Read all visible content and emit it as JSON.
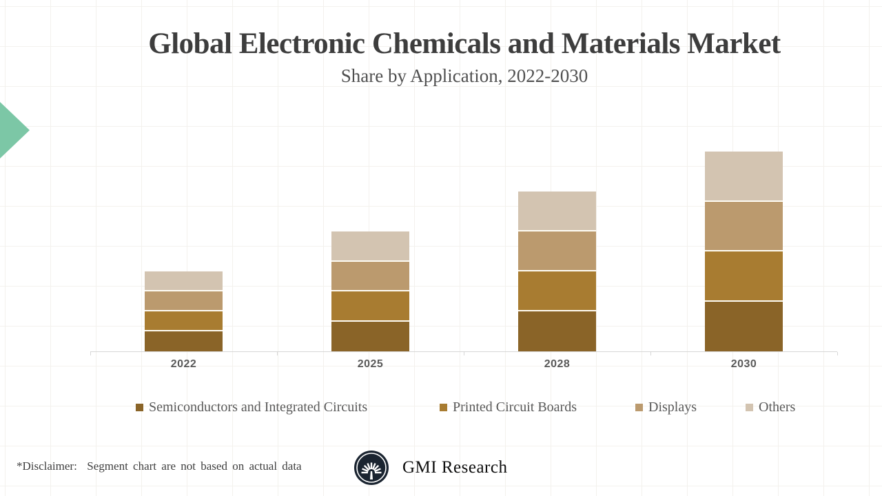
{
  "slide": {
    "title": "Global Electronic Chemicals and Materials Market",
    "subtitle": "Share by Application, 2022-2030",
    "disclaimer": "*Disclaimer:  Segment chart are not based on actual data",
    "brand_name": "GMI Research",
    "accent_triangle_color": "#7cc7a6",
    "logo_color": "#1a2430"
  },
  "chart_data": {
    "type": "bar",
    "stacked": true,
    "title": "Global Electronic Chemicals and Materials Market",
    "subtitle": "Share by Application, 2022-2030",
    "categories": [
      "2022",
      "2025",
      "2028",
      "2030"
    ],
    "series": [
      {
        "name": "Semiconductors and Integrated Circuits",
        "color": "#8a6428",
        "values": [
          1,
          1.5,
          2,
          2.5
        ]
      },
      {
        "name": "Printed Circuit Boards",
        "color": "#a87c31",
        "values": [
          1,
          1.5,
          2,
          2.5
        ]
      },
      {
        "name": "Displays",
        "color": "#bb9a6e",
        "values": [
          1,
          1.5,
          2,
          2.5
        ]
      },
      {
        "name": "Others",
        "color": "#d3c4b1",
        "values": [
          1,
          1.5,
          2,
          2.5
        ]
      }
    ],
    "totals": [
      4,
      6,
      8,
      10
    ],
    "xlabel": "",
    "ylabel": "",
    "y_axis_visible": false,
    "legend_position": "bottom",
    "axis_color": "#d6d6d6",
    "label_color": "#595959"
  }
}
